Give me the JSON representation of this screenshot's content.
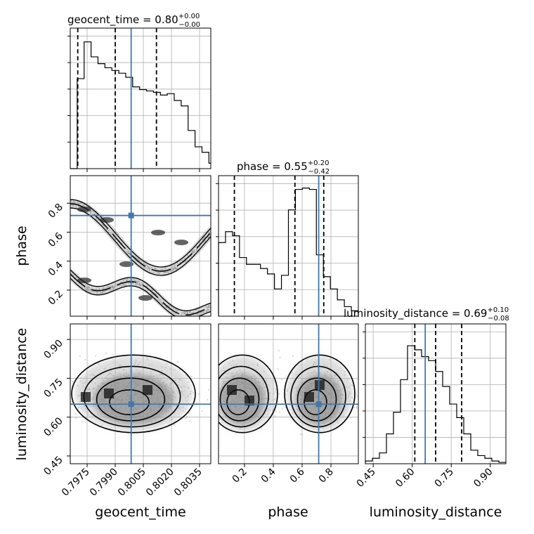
{
  "chart_data": {
    "type": "corner",
    "parameters": [
      "geocent_time",
      "phase",
      "luminosity_distance"
    ],
    "titles": [
      {
        "param": "geocent_time",
        "label": "geocent_time = 0.80",
        "plus": "+0.00",
        "minus": "−0.00"
      },
      {
        "param": "phase",
        "label": "phase = 0.55",
        "plus": "+0.20",
        "minus": "−0.42"
      },
      {
        "param": "luminosity_distance",
        "label": "luminosity_distance = 0.69",
        "plus": "+0.10",
        "minus": "−0.08"
      }
    ],
    "truths": {
      "geocent_time": 0.79985,
      "phase": 0.715,
      "luminosity_distance": 0.65
    },
    "truth_color": "#4477aa",
    "axes": {
      "geocent_time": {
        "range": [
          0.7966,
          0.8041
        ],
        "ticks": [
          0.7975,
          0.799,
          0.8005,
          0.802,
          0.8035
        ],
        "ticklabels": [
          "0.7975",
          "0.7990",
          "0.8005",
          "0.8020",
          "0.8035"
        ]
      },
      "phase": {
        "range": [
          0.02,
          0.99
        ],
        "ticks": [
          0.2,
          0.4,
          0.6,
          0.8
        ],
        "ticklabels": [
          "0.2",
          "0.4",
          "0.6",
          "0.8"
        ]
      },
      "luminosity_distance": {
        "range": [
          0.42,
          0.96
        ],
        "ticks": [
          0.45,
          0.6,
          0.75,
          0.9
        ],
        "ticklabels": [
          "0.45",
          "0.60",
          "0.75",
          "0.90"
        ]
      }
    },
    "quantiles": {
      "geocent_time": [
        0.797,
        0.799,
        0.8012
      ],
      "phase": [
        0.13,
        0.55,
        0.75
      ],
      "luminosity_distance": [
        0.61,
        0.69,
        0.79
      ]
    },
    "histograms": {
      "geocent_time": {
        "edges_start": 0.7966,
        "bin_width": 0.00037,
        "counts": [
          0.0,
          0.66,
          0.93,
          0.82,
          0.77,
          0.74,
          0.72,
          0.7,
          0.67,
          0.6,
          0.58,
          0.57,
          0.56,
          0.54,
          0.55,
          0.5,
          0.46,
          0.28,
          0.16,
          0.12,
          0.04
        ]
      },
      "phase": {
        "edges_start": 0.02,
        "bin_width": 0.0485,
        "counts": [
          0.54,
          0.62,
          0.59,
          0.43,
          0.38,
          0.38,
          0.35,
          0.31,
          0.2,
          0.3,
          0.78,
          0.93,
          0.94,
          0.93,
          0.45,
          0.29,
          0.2,
          0.12,
          0.07,
          0.04
        ]
      },
      "luminosity_distance": {
        "edges_start": 0.42,
        "bin_width": 0.027,
        "counts": [
          0.02,
          0.04,
          0.08,
          0.22,
          0.38,
          0.62,
          0.87,
          0.84,
          0.79,
          0.76,
          0.68,
          0.57,
          0.44,
          0.34,
          0.22,
          0.1,
          0.06,
          0.04,
          0.02,
          0.01
        ]
      }
    },
    "xlabels": [
      "geocent_time",
      "phase",
      "luminosity_distance"
    ],
    "ylabels": [
      "phase",
      "luminosity_distance"
    ],
    "grid": true
  }
}
